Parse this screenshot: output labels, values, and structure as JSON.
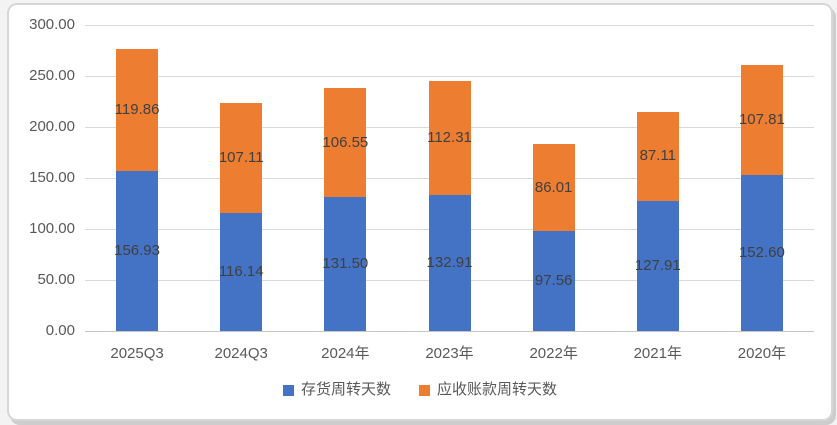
{
  "chart_data": {
    "type": "bar",
    "stacked": true,
    "title": "",
    "xlabel": "",
    "ylabel": "",
    "categories": [
      "2025Q3",
      "2024Q3",
      "2024年",
      "2023年",
      "2022年",
      "2021年",
      "2020年"
    ],
    "series": [
      {
        "name": "存货周转天数",
        "color": "#4472C4",
        "values": [
          156.93,
          116.14,
          131.5,
          132.91,
          97.56,
          127.91,
          152.6
        ]
      },
      {
        "name": "应收账款周转天数",
        "color": "#ED7D31",
        "values": [
          119.86,
          107.11,
          106.55,
          112.31,
          86.01,
          87.11,
          107.81
        ]
      }
    ],
    "ylim": [
      0,
      300
    ],
    "ytick_step": 50,
    "ytick_labels": [
      "0.00",
      "50.00",
      "100.00",
      "150.00",
      "200.00",
      "250.00",
      "300.00"
    ],
    "grid": true,
    "legend_position": "bottom",
    "data_labels": true,
    "data_label_decimals": 2
  },
  "colors": {
    "grid": "#D9D9D9",
    "axis_text": "#595959",
    "data_label_text": "#404040",
    "frame_border": "#D7D7D7",
    "background": "#FFFFFF",
    "series_blue": "#4472C4",
    "series_orange": "#ED7D31"
  }
}
